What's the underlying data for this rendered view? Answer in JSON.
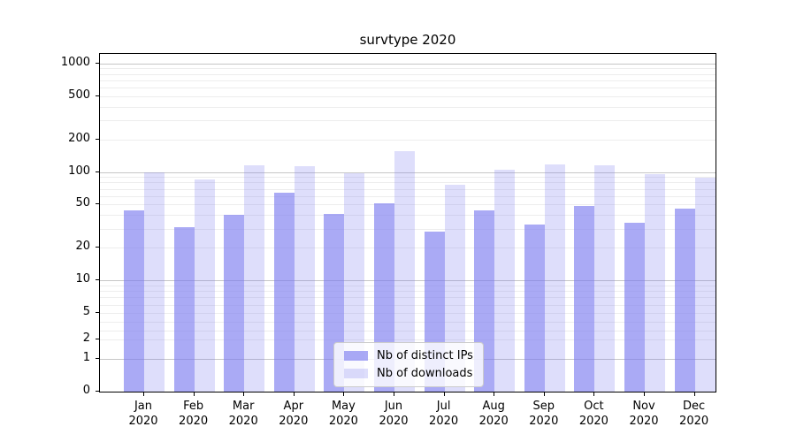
{
  "chart_data": {
    "type": "bar",
    "title": "survtype 2020",
    "categories": [
      "Jan",
      "Feb",
      "Mar",
      "Apr",
      "May",
      "Jun",
      "Jul",
      "Aug",
      "Sep",
      "Oct",
      "Nov",
      "Dec"
    ],
    "category_year": "2020",
    "series": [
      {
        "name": "Nb of distinct IPs",
        "color": "rgba(122,122,240,0.64)",
        "values": [
          44,
          31,
          40,
          64,
          41,
          51,
          28,
          44,
          33,
          49,
          34,
          46
        ]
      },
      {
        "name": "Nb of downloads",
        "color": "rgba(122,122,240,0.25)",
        "values": [
          100,
          85,
          115,
          112,
          97,
          155,
          76,
          105,
          117,
          115,
          95,
          88
        ]
      }
    ],
    "yscale": "symlog",
    "yticks": [
      0,
      1,
      2,
      5,
      10,
      20,
      50,
      100,
      200,
      500,
      1000
    ],
    "ylim": [
      0,
      1250
    ],
    "grid": "both",
    "legend_position": "lower-center-inside",
    "colors": {
      "major_grid": "#c6c6c6",
      "minor_grid": "#ededed",
      "spine": "#000000"
    }
  }
}
